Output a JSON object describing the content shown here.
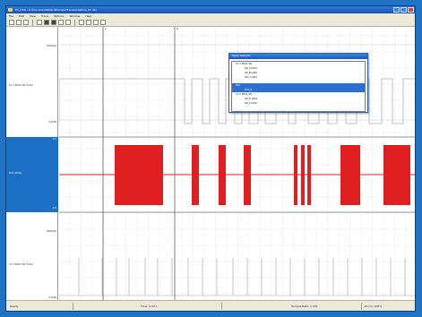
{
  "window": {
    "title": "PC_DSO - D:\\Documents\\Oscilloscope\\Traces\\Capture_01.dso",
    "menu": [
      "File",
      "Edit",
      "View",
      "Trace",
      "Options",
      "Window",
      "Help"
    ]
  },
  "tracks": [
    {
      "name": "Ch 1 PRS2 SN (Volts)",
      "ymax": "3000000",
      "ymin": "0.0000",
      "selected": false
    },
    {
      "name": "PC2 (Volts)",
      "ymax": "0.5",
      "ymin": "-0.5",
      "selected": true
    },
    {
      "name": "Ch 3 PRS2 SN (Volts)",
      "ymax": "3000000",
      "ymin": "0.0000",
      "selected": false
    }
  ],
  "cursors": {
    "a_label": "A",
    "b_label": "B"
  },
  "popup": {
    "title": "Signal Selection",
    "items": [
      "Ch 1 PRS2 SN",
      "SN_A DATA",
      "SN_B DATA",
      "SN_C DATA",
      "",
      "PC2",
      "PC2_B",
      "Ch 3 PRS2 SN",
      "SN_D DATA",
      "SN_E DATA"
    ],
    "selected_index": 5
  },
  "status": {
    "left": "Ready",
    "middle": "Time: 0.00 s",
    "right": "Sample Rate: 1 kHz",
    "far_right": "Zoom: 100%"
  },
  "colors": {
    "accent": "#1b6fc4",
    "signal": "#e02020",
    "grid": "#d9d9d9"
  }
}
